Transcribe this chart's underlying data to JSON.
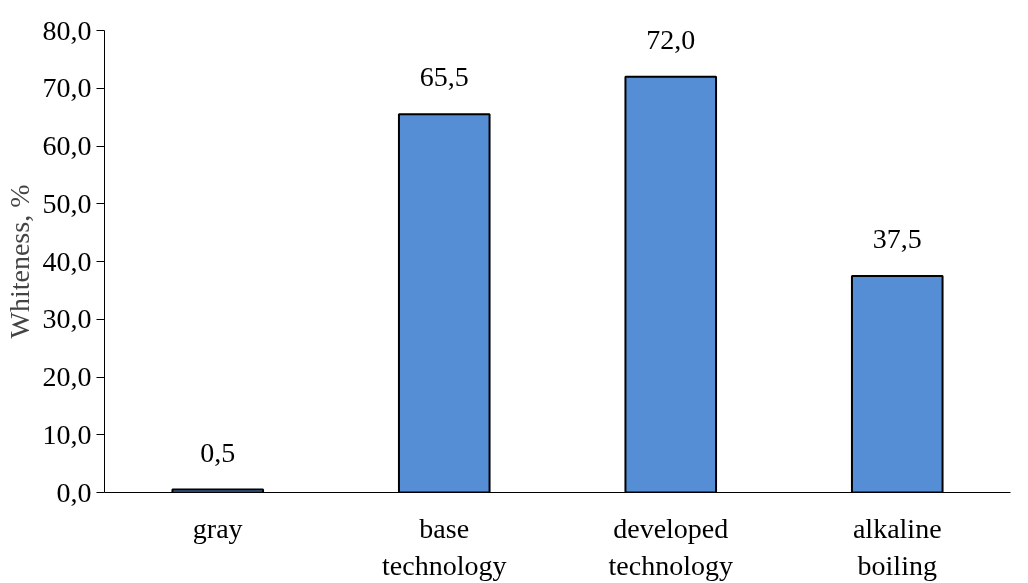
{
  "chart_data": {
    "type": "bar",
    "ylabel": "Whiteness, %",
    "categories": [
      "gray",
      "base technology",
      "developed technology",
      "alkaline boiling"
    ],
    "values": [
      0.5,
      65.5,
      72.0,
      37.5
    ],
    "value_labels": [
      "0,5",
      "65,5",
      "72,0",
      "37,5"
    ],
    "color": "#558ed5",
    "ylim": [
      0,
      80
    ],
    "yticks": [
      {
        "value": 0,
        "label": "0,0"
      },
      {
        "value": 10,
        "label": "10,0"
      },
      {
        "value": 20,
        "label": "20,0"
      },
      {
        "value": 30,
        "label": "30,0"
      },
      {
        "value": 40,
        "label": "40,0"
      },
      {
        "value": 50,
        "label": "50,0"
      },
      {
        "value": 60,
        "label": "60,0"
      },
      {
        "value": 70,
        "label": "70,0"
      },
      {
        "value": 80,
        "label": "80,0"
      }
    ],
    "grid": false
  }
}
